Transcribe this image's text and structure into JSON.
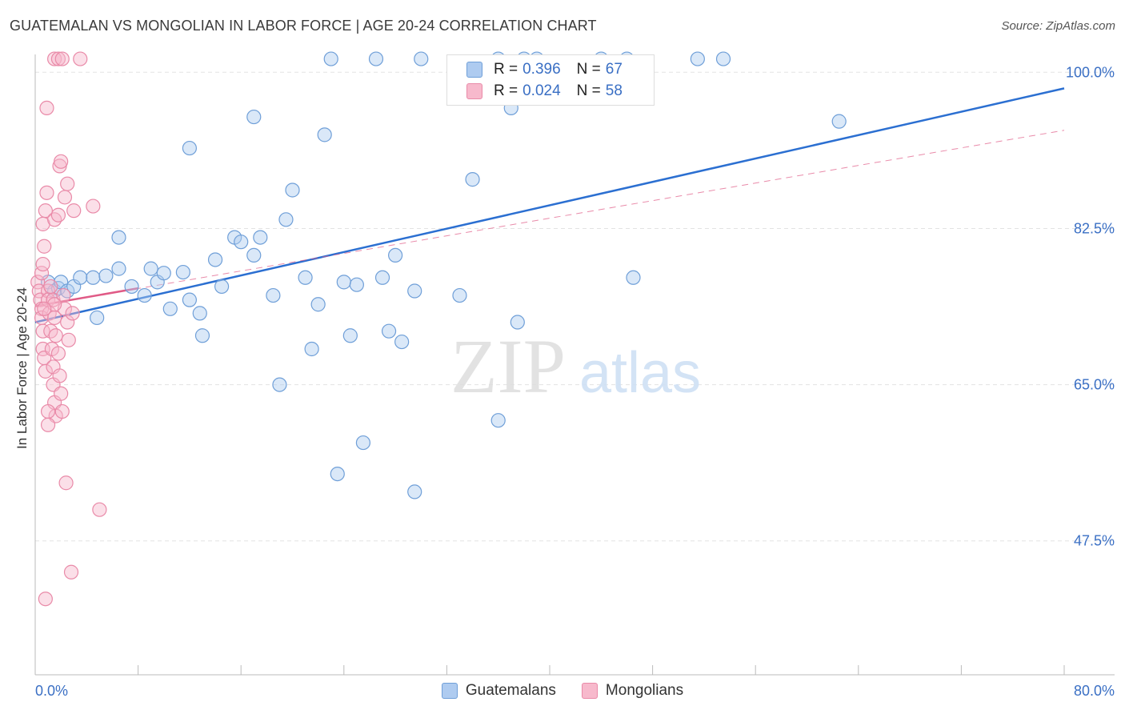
{
  "header": {
    "title": "GUATEMALAN VS MONGOLIAN IN LABOR FORCE | AGE 20-24 CORRELATION CHART",
    "source": "Source: ZipAtlas.com"
  },
  "legend": {
    "series": [
      {
        "r_label": "R =",
        "r_value": "0.396",
        "n_label": "N =",
        "n_value": "67"
      },
      {
        "r_label": "R =",
        "r_value": "0.024",
        "n_label": "N =",
        "n_value": "58"
      }
    ]
  },
  "bottom_legend": {
    "items": [
      "Guatemalans",
      "Mongolians"
    ]
  },
  "watermark": {
    "zip": "ZIP",
    "atlas": "atlas"
  },
  "colors": {
    "blue_fill": "#aecbf0",
    "blue_stroke": "#6f9fd8",
    "blue_line": "#2b6fd1",
    "pink_fill": "#f7b9cc",
    "pink_stroke": "#e98aa8",
    "pink_line": "#e05a86",
    "tick_text": "#3a6fc4",
    "grid": "#e3e3e3"
  },
  "chart_data": {
    "type": "scatter",
    "title": "GUATEMALAN VS MONGOLIAN IN LABOR FORCE | AGE 20-24 CORRELATION CHART",
    "xlabel": "",
    "ylabel": "In Labor Force | Age 20-24",
    "xlim": [
      0,
      80
    ],
    "ylim": [
      32.5,
      102
    ],
    "x_tick_labels": [
      "0.0%",
      "80.0%"
    ],
    "y_ticks": [
      47.5,
      65.0,
      82.5,
      100.0
    ],
    "y_tick_labels": [
      "47.5%",
      "65.0%",
      "82.5%",
      "100.0%"
    ],
    "grid": true,
    "series": [
      {
        "name": "Guatemalans",
        "r": 0.396,
        "n": 67,
        "trend": {
          "x": [
            0,
            80
          ],
          "y": [
            72.0,
            98.2
          ],
          "style": "solid"
        },
        "points": [
          [
            1.0,
            76.5
          ],
          [
            1.5,
            75.5
          ],
          [
            1.8,
            75.8
          ],
          [
            2.0,
            76.5
          ],
          [
            2.5,
            75.5
          ],
          [
            3.0,
            76.0
          ],
          [
            3.5,
            77.0
          ],
          [
            4.5,
            77.0
          ],
          [
            4.8,
            72.5
          ],
          [
            5.5,
            77.2
          ],
          [
            6.5,
            78.0
          ],
          [
            7.5,
            76.0
          ],
          [
            6.5,
            81.5
          ],
          [
            8.5,
            75.0
          ],
          [
            9.0,
            78.0
          ],
          [
            9.5,
            76.5
          ],
          [
            10.0,
            77.5
          ],
          [
            10.5,
            73.5
          ],
          [
            11.5,
            77.6
          ],
          [
            12.0,
            74.5
          ],
          [
            12.8,
            73.0
          ],
          [
            13.0,
            70.5
          ],
          [
            14.0,
            79.0
          ],
          [
            14.5,
            76.0
          ],
          [
            15.5,
            81.5
          ],
          [
            16.0,
            81.0
          ],
          [
            17.0,
            79.5
          ],
          [
            17.5,
            81.5
          ],
          [
            18.5,
            75.0
          ],
          [
            19.0,
            65.0
          ],
          [
            19.5,
            83.5
          ],
          [
            20.0,
            86.8
          ],
          [
            21.0,
            77.0
          ],
          [
            21.5,
            69.0
          ],
          [
            22.0,
            74.0
          ],
          [
            22.5,
            93.0
          ],
          [
            23.5,
            55.0
          ],
          [
            24.0,
            76.5
          ],
          [
            24.5,
            70.5
          ],
          [
            25.0,
            76.2
          ],
          [
            25.5,
            58.5
          ],
          [
            27.0,
            77.0
          ],
          [
            27.5,
            71.0
          ],
          [
            28.0,
            79.5
          ],
          [
            28.5,
            69.8
          ],
          [
            29.5,
            75.5
          ],
          [
            17.0,
            95.0
          ],
          [
            23.0,
            101.5
          ],
          [
            26.5,
            101.5
          ],
          [
            38.0,
            101.5
          ],
          [
            39.0,
            101.5
          ],
          [
            36.0,
            101.5
          ],
          [
            37.5,
            100.5
          ],
          [
            44.0,
            101.5
          ],
          [
            46.0,
            101.5
          ],
          [
            12.0,
            91.5
          ],
          [
            34.0,
            88.0
          ],
          [
            30.0,
            101.5
          ],
          [
            37.0,
            96.0
          ],
          [
            29.5,
            53.0
          ],
          [
            33.0,
            75.0
          ],
          [
            37.5,
            72.0
          ],
          [
            46.5,
            77.0
          ],
          [
            51.5,
            101.5
          ],
          [
            53.5,
            101.5
          ],
          [
            62.5,
            94.5
          ],
          [
            36.0,
            61.0
          ]
        ]
      },
      {
        "name": "Mongolians",
        "r": 0.024,
        "n": 58,
        "trend": {
          "x": [
            0,
            8
          ],
          "y": [
            73.8,
            75.8
          ],
          "style": "solid"
        },
        "trend_extended": {
          "x": [
            0,
            80
          ],
          "y": [
            73.8,
            93.5
          ],
          "style": "dashed"
        },
        "points": [
          [
            0.2,
            76.5
          ],
          [
            0.3,
            75.5
          ],
          [
            0.4,
            74.5
          ],
          [
            0.5,
            73.5
          ],
          [
            0.5,
            72.5
          ],
          [
            0.6,
            71.0
          ],
          [
            0.6,
            69.0
          ],
          [
            0.7,
            68.0
          ],
          [
            0.8,
            66.5
          ],
          [
            0.5,
            77.5
          ],
          [
            0.6,
            78.5
          ],
          [
            0.7,
            80.5
          ],
          [
            0.6,
            83.0
          ],
          [
            0.8,
            84.5
          ],
          [
            0.9,
            86.5
          ],
          [
            1.0,
            75.5
          ],
          [
            1.0,
            74.5
          ],
          [
            1.1,
            73.0
          ],
          [
            1.2,
            71.0
          ],
          [
            1.3,
            69.0
          ],
          [
            1.4,
            67.0
          ],
          [
            1.4,
            65.0
          ],
          [
            1.5,
            63.0
          ],
          [
            1.6,
            61.5
          ],
          [
            1.0,
            62.0
          ],
          [
            1.0,
            60.5
          ],
          [
            1.2,
            76.0
          ],
          [
            1.4,
            74.5
          ],
          [
            1.5,
            72.5
          ],
          [
            1.6,
            70.5
          ],
          [
            1.8,
            68.5
          ],
          [
            1.9,
            66.0
          ],
          [
            2.0,
            64.0
          ],
          [
            2.1,
            62.0
          ],
          [
            2.2,
            75.0
          ],
          [
            2.3,
            73.5
          ],
          [
            2.5,
            72.0
          ],
          [
            2.6,
            70.0
          ],
          [
            1.5,
            83.5
          ],
          [
            1.8,
            84.0
          ],
          [
            1.9,
            89.5
          ],
          [
            2.0,
            90.0
          ],
          [
            2.3,
            86.0
          ],
          [
            2.5,
            87.5
          ],
          [
            1.5,
            101.5
          ],
          [
            1.8,
            101.5
          ],
          [
            2.1,
            101.5
          ],
          [
            3.5,
            101.5
          ],
          [
            0.9,
            96.0
          ],
          [
            2.4,
            54.0
          ],
          [
            3.0,
            84.5
          ],
          [
            4.5,
            85.0
          ],
          [
            5.0,
            51.0
          ],
          [
            2.8,
            44.0
          ],
          [
            0.8,
            41.0
          ],
          [
            1.5,
            74.0
          ],
          [
            2.9,
            73.0
          ],
          [
            0.7,
            73.5
          ]
        ]
      }
    ]
  }
}
